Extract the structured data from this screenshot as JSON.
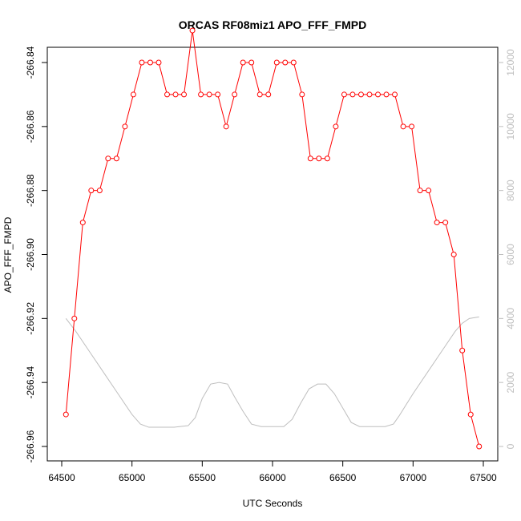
{
  "chart_data": {
    "type": "line",
    "title": "ORCAS RF08miz1 APO_FFF_FMPD",
    "xlabel": "UTC Seconds",
    "ylabel": "APO_FFF_FMPD",
    "xlim": [
      64500,
      67500
    ],
    "ylim": [
      -266.96,
      -266.84
    ],
    "y2lim": [
      0,
      12000
    ],
    "x_ticks": [
      "64500",
      "65000",
      "65500",
      "66000",
      "66500",
      "67000",
      "67500"
    ],
    "y_ticks": [
      "-266.84",
      "-266.86",
      "-266.88",
      "-266.90",
      "-266.92",
      "-266.94",
      "-266.96"
    ],
    "y2_ticks": [
      "0",
      "2000",
      "4000",
      "6000",
      "8000",
      "10000",
      "12000"
    ],
    "grid": false,
    "colors": {
      "primary": "#ff0000",
      "secondary": "#bebebe"
    },
    "series": [
      {
        "axis": "left",
        "x": [
          64530,
          64590,
          64650,
          64710,
          64770,
          64830,
          64890,
          64950,
          65010,
          65070,
          65130,
          65190,
          65250,
          65310,
          65370,
          65430,
          65490,
          65550,
          65610,
          65670,
          65730,
          65790,
          65850,
          65910,
          65970,
          66030,
          66090,
          66150,
          66210,
          66270,
          66330,
          66390,
          66450,
          66510,
          66570,
          66630,
          66690,
          66750,
          66810,
          66870,
          66930,
          66990,
          67050,
          67110,
          67170,
          67230,
          67290,
          67350,
          67410,
          67470
        ],
        "values": [
          -266.95,
          -266.92,
          -266.89,
          -266.88,
          -266.88,
          -266.87,
          -266.87,
          -266.86,
          -266.85,
          -266.84,
          -266.84,
          -266.84,
          -266.85,
          -266.85,
          -266.85,
          -266.83,
          -266.85,
          -266.85,
          -266.85,
          -266.86,
          -266.85,
          -266.84,
          -266.84,
          -266.85,
          -266.85,
          -266.84,
          -266.84,
          -266.84,
          -266.85,
          -266.87,
          -266.87,
          -266.87,
          -266.86,
          -266.85,
          -266.85,
          -266.85,
          -266.85,
          -266.85,
          -266.85,
          -266.85,
          -266.86,
          -266.86,
          -266.88,
          -266.88,
          -266.89,
          -266.89,
          -266.9,
          -266.93,
          -266.95,
          -266.96
        ]
      },
      {
        "axis": "right",
        "x": [
          64530,
          64600,
          64700,
          64800,
          64900,
          65000,
          65060,
          65120,
          65200,
          65300,
          65400,
          65450,
          65500,
          65560,
          65620,
          65680,
          65730,
          65790,
          65850,
          65920,
          66000,
          66080,
          66140,
          66200,
          66260,
          66320,
          66380,
          66440,
          66500,
          66560,
          66620,
          66700,
          66800,
          66860,
          66900,
          67000,
          67100,
          67200,
          67300,
          67350,
          67400,
          67470
        ],
        "values": [
          4000,
          3600,
          2950,
          2300,
          1650,
          1000,
          700,
          600,
          600,
          600,
          650,
          900,
          1500,
          1950,
          2000,
          1950,
          1550,
          1100,
          700,
          620,
          620,
          620,
          850,
          1350,
          1800,
          1950,
          1950,
          1650,
          1200,
          750,
          620,
          620,
          620,
          700,
          950,
          1650,
          2300,
          2950,
          3600,
          3850,
          4000,
          4050
        ]
      }
    ]
  }
}
